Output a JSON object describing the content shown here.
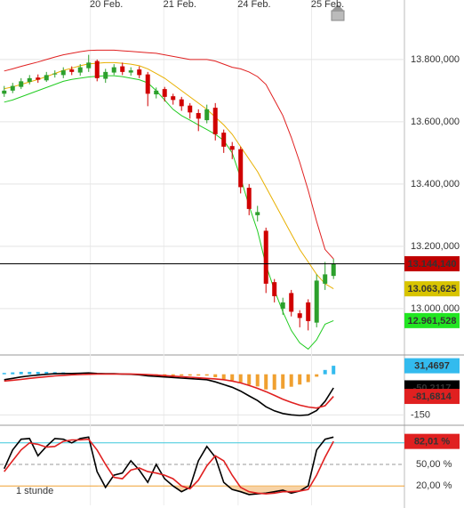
{
  "chart_data": [
    {
      "type": "candlestick",
      "xlim": [
        -0.5,
        47.4
      ],
      "xticks": [
        {
          "value": 10.2,
          "label": "20 Feb."
        },
        {
          "value": 18.9,
          "label": "21 Feb."
        },
        {
          "value": 27.7,
          "label": "24 Feb."
        },
        {
          "value": 36.4,
          "label": "25 Feb."
        }
      ],
      "ylim": [
        12854,
        13991
      ],
      "yticks": [
        {
          "value": 13800,
          "label": "13.800,000"
        },
        {
          "value": 13600,
          "label": "13.600,000"
        },
        {
          "value": 13400,
          "label": "13.400,000"
        },
        {
          "value": 13200,
          "label": "13.200,000"
        },
        {
          "value": 13000,
          "label": "13.000,000"
        }
      ],
      "up_color": "#2ca02c",
      "down_color": "#d00000",
      "label_color": "#c00000",
      "open": [
        13690,
        13700,
        13712,
        13728,
        13742,
        13733,
        13752,
        13750,
        13768,
        13758,
        13772,
        13795,
        13738,
        13758,
        13778,
        13758,
        13768,
        13752,
        13688,
        13705,
        13682,
        13672,
        13652,
        13628,
        13605,
        13645,
        13565,
        13522,
        13512,
        13388,
        13300,
        13250,
        13085,
        13000,
        13050,
        12985,
        13020,
        12955,
        13080,
        13105
      ],
      "high": [
        13715,
        13725,
        13740,
        13750,
        13752,
        13760,
        13765,
        13775,
        13778,
        13785,
        13815,
        13800,
        13770,
        13785,
        13790,
        13775,
        13778,
        13760,
        13710,
        13712,
        13690,
        13680,
        13660,
        13640,
        13655,
        13660,
        13575,
        13535,
        13520,
        13400,
        13330,
        13260,
        13095,
        13035,
        13060,
        12995,
        13030,
        13110,
        13150,
        13160
      ],
      "low": [
        13680,
        13692,
        13705,
        13720,
        13725,
        13728,
        13742,
        13740,
        13750,
        13748,
        13760,
        13730,
        13725,
        13750,
        13750,
        13748,
        13740,
        13650,
        13675,
        13665,
        13655,
        13635,
        13610,
        13570,
        13595,
        13540,
        13500,
        13480,
        13370,
        13300,
        13280,
        13050,
        13020,
        12980,
        12975,
        12940,
        12930,
        12940,
        13060,
        13095
      ],
      "close": [
        13700,
        13715,
        13730,
        13740,
        13735,
        13750,
        13755,
        13765,
        13760,
        13775,
        13790,
        13740,
        13760,
        13775,
        13760,
        13765,
        13750,
        13690,
        13700,
        13680,
        13670,
        13650,
        13630,
        13610,
        13640,
        13560,
        13520,
        13510,
        13390,
        13320,
        13310,
        13080,
        13040,
        13020,
        12990,
        12970,
        12960,
        13090,
        13110,
        13144.14
      ],
      "close_labels": [
        null,
        null,
        null,
        null,
        null,
        null,
        null,
        null,
        null,
        null,
        null,
        null,
        null,
        null,
        null,
        null,
        null,
        null,
        null,
        null,
        null,
        null,
        null,
        null,
        null,
        null,
        null,
        null,
        null,
        null,
        null,
        null,
        null,
        null,
        null,
        null,
        null,
        null,
        null,
        "13.144,140"
      ],
      "series": [
        {
          "color": "#e02020",
          "values": [
            13763,
            13770,
            13778,
            13785,
            13792,
            13800,
            13808,
            13815,
            13820,
            13825,
            13829,
            13830,
            13830,
            13830,
            13828,
            13826,
            13824,
            13822,
            13820,
            13815,
            13810,
            13805,
            13800,
            13800,
            13800,
            13795,
            13785,
            13775,
            13770,
            13760,
            13745,
            13720,
            13670,
            13620,
            13550,
            13470,
            13380,
            13280,
            13190,
            13160
          ]
        },
        {
          "color": "#e8b000",
          "label_color": "#d8c400",
          "values": [
            13706,
            13712,
            13720,
            13728,
            13736,
            13745,
            13755,
            13765,
            13772,
            13780,
            13786,
            13788,
            13790,
            13790,
            13788,
            13785,
            13780,
            13770,
            13755,
            13740,
            13720,
            13700,
            13680,
            13660,
            13640,
            13615,
            13590,
            13560,
            13520,
            13480,
            13440,
            13390,
            13340,
            13290,
            13240,
            13190,
            13150,
            13110,
            13080,
            13063.625
          ],
          "value_labels": [
            null,
            null,
            null,
            null,
            null,
            null,
            null,
            null,
            null,
            null,
            null,
            null,
            null,
            null,
            null,
            null,
            null,
            null,
            null,
            null,
            null,
            null,
            null,
            null,
            null,
            null,
            null,
            null,
            null,
            null,
            null,
            null,
            null,
            null,
            null,
            null,
            null,
            null,
            null,
            "13.063,625"
          ]
        },
        {
          "color": "#22cc22",
          "label_color": "#22e622",
          "values": [
            13663,
            13670,
            13680,
            13690,
            13700,
            13710,
            13720,
            13730,
            13736,
            13740,
            13744,
            13746,
            13748,
            13748,
            13745,
            13740,
            13735,
            13725,
            13700,
            13670,
            13640,
            13620,
            13605,
            13590,
            13575,
            13560,
            13540,
            13500,
            13420,
            13330,
            13250,
            13140,
            13060,
            12990,
            12930,
            12890,
            12870,
            12900,
            12950,
            12961.528
          ],
          "value_labels": [
            null,
            null,
            null,
            null,
            null,
            null,
            null,
            null,
            null,
            null,
            null,
            null,
            null,
            null,
            null,
            null,
            null,
            null,
            null,
            null,
            null,
            null,
            null,
            null,
            null,
            null,
            null,
            null,
            null,
            null,
            null,
            null,
            null,
            null,
            null,
            null,
            null,
            null,
            null,
            "12.961,528"
          ]
        }
      ]
    },
    {
      "type": "macd",
      "ylim": [
        -185,
        68
      ],
      "yticks": [
        -150
      ],
      "pos_color": "#33bbee",
      "neg_color": "#f0a030",
      "histogram": [
        5,
        7,
        9,
        9,
        9,
        9,
        8,
        7,
        5,
        5,
        5,
        2,
        1,
        1,
        0,
        -1,
        -2,
        -5,
        -5,
        -5,
        -5,
        -5,
        -5,
        -5,
        -5,
        -11,
        -18,
        -23,
        -30,
        -39,
        -45,
        -56,
        -57,
        -53,
        -46,
        -38,
        -29,
        -9,
        16,
        31.4697
      ],
      "histogram_labels": [
        null,
        null,
        null,
        null,
        null,
        null,
        null,
        null,
        null,
        null,
        null,
        null,
        null,
        null,
        null,
        null,
        null,
        null,
        null,
        null,
        null,
        null,
        null,
        null,
        null,
        null,
        null,
        null,
        null,
        null,
        null,
        null,
        null,
        null,
        null,
        null,
        null,
        null,
        null,
        "31,4697"
      ],
      "series": [
        {
          "color": "#000000",
          "values": [
            -20,
            -15,
            -10,
            -6,
            -3,
            0,
            2,
            3,
            3,
            4,
            5,
            3,
            2,
            2,
            1,
            0,
            -2,
            -6,
            -8,
            -10,
            -12,
            -14,
            -16,
            -18,
            -20,
            -28,
            -38,
            -48,
            -62,
            -80,
            -97,
            -120,
            -135,
            -145,
            -150,
            -152,
            -150,
            -134,
            -100,
            -50.2117
          ],
          "value_labels": [
            null,
            null,
            null,
            null,
            null,
            null,
            null,
            null,
            null,
            null,
            null,
            null,
            null,
            null,
            null,
            null,
            null,
            null,
            null,
            null,
            null,
            null,
            null,
            null,
            null,
            null,
            null,
            null,
            null,
            null,
            null,
            null,
            null,
            null,
            null,
            null,
            null,
            null,
            null,
            "-50,2117"
          ]
        },
        {
          "color": "#e02020",
          "values": [
            -25,
            -22,
            -19,
            -15,
            -12,
            -9,
            -6,
            -4,
            -2,
            -1,
            0,
            1,
            1,
            1,
            1,
            1,
            0,
            -1,
            -3,
            -5,
            -7,
            -9,
            -11,
            -13,
            -15,
            -17,
            -20,
            -25,
            -32,
            -41,
            -52,
            -64,
            -78,
            -92,
            -104,
            -114,
            -121,
            -125,
            -116,
            -81.6814
          ],
          "value_labels": [
            null,
            null,
            null,
            null,
            null,
            null,
            null,
            null,
            null,
            null,
            null,
            null,
            null,
            null,
            null,
            null,
            null,
            null,
            null,
            null,
            null,
            null,
            null,
            null,
            null,
            null,
            null,
            null,
            null,
            null,
            null,
            null,
            null,
            null,
            null,
            null,
            null,
            null,
            null,
            "-81,6814"
          ]
        }
      ]
    },
    {
      "type": "stochastic",
      "annotation": "1 stunde",
      "ylim": [
        -7,
        102
      ],
      "yticks": [
        {
          "value": 50,
          "label": "50,00 %"
        },
        {
          "value": 20,
          "label": "20,00 %"
        }
      ],
      "levels": [
        {
          "value": 80,
          "color": "#3cc8dc",
          "dash": false
        },
        {
          "value": 50,
          "color": "#999999",
          "dash": true
        },
        {
          "value": 20,
          "color": "#f0a030",
          "dash": false
        }
      ],
      "fill_color": "#f5c890",
      "series": [
        {
          "color": "#000000",
          "values": [
            44,
            70,
            85,
            86,
            62,
            75,
            86,
            85,
            80,
            86,
            88,
            40,
            18,
            35,
            38,
            55,
            42,
            25,
            50,
            30,
            20,
            12,
            18,
            55,
            75,
            60,
            25,
            15,
            12,
            8,
            9,
            10,
            12,
            14,
            10,
            13,
            20,
            70,
            85,
            88
          ]
        },
        {
          "color": "#e02020",
          "values": [
            40,
            55,
            70,
            80,
            78,
            74,
            75,
            82,
            84,
            84,
            85,
            70,
            50,
            32,
            30,
            42,
            45,
            40,
            38,
            35,
            30,
            20,
            16,
            28,
            48,
            62,
            55,
            35,
            18,
            12,
            10,
            9,
            10,
            12,
            12,
            13,
            15,
            35,
            60,
            82.01
          ],
          "value_labels": [
            null,
            null,
            null,
            null,
            null,
            null,
            null,
            null,
            null,
            null,
            null,
            null,
            null,
            null,
            null,
            null,
            null,
            null,
            null,
            null,
            null,
            null,
            null,
            null,
            null,
            null,
            null,
            null,
            null,
            null,
            null,
            null,
            null,
            null,
            null,
            null,
            null,
            null,
            null,
            "82,01 %"
          ]
        }
      ]
    }
  ]
}
